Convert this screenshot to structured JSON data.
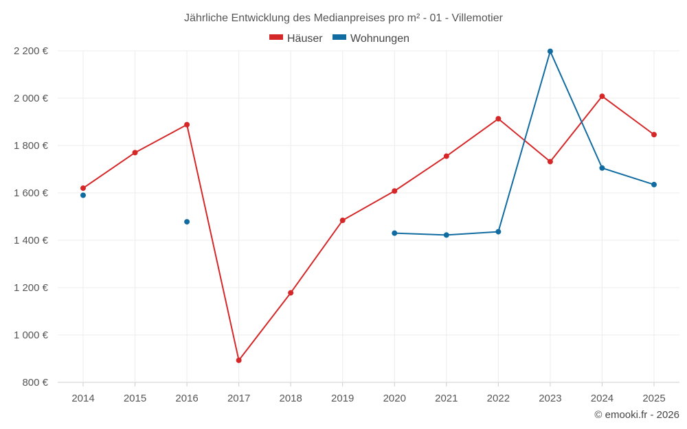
{
  "chart_data": {
    "type": "line",
    "title": "Jährliche Entwicklung des Medianpreises pro m² - 01 - Villemotier",
    "categories": [
      "2014",
      "2015",
      "2016",
      "2017",
      "2018",
      "2019",
      "2020",
      "2021",
      "2022",
      "2023",
      "2024",
      "2025"
    ],
    "series": [
      {
        "name": "Häuser",
        "color": "#d62728",
        "values": [
          1620,
          1770,
          1888,
          893,
          1178,
          1484,
          1608,
          1755,
          1913,
          1732,
          2008,
          1846
        ]
      },
      {
        "name": "Wohnungen",
        "color": "#0f6ba0",
        "values": [
          1590,
          null,
          1478,
          null,
          null,
          null,
          1430,
          1422,
          1436,
          2198,
          1705,
          1635
        ]
      }
    ],
    "ylim": [
      800,
      2200
    ],
    "yticks": [
      800,
      1000,
      1200,
      1400,
      1600,
      1800,
      2000,
      2200
    ],
    "ytick_labels": [
      "800 €",
      "1 000 €",
      "1 200 €",
      "1 400 €",
      "1 600 €",
      "1 800 €",
      "2 000 €",
      "2 200 €"
    ],
    "legend_position": "top-center",
    "grid": true
  },
  "footer": {
    "copyright": "© emooki.fr - 2026"
  }
}
